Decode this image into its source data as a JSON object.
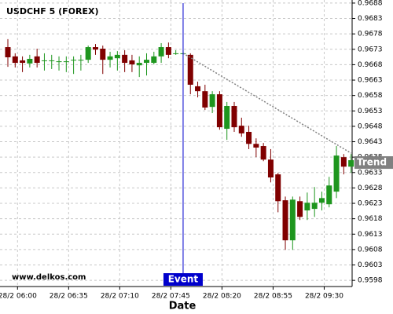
{
  "chart_data": {
    "type": "candlestick",
    "title": "USDCHF 5 (FOREX)",
    "watermark": "www.delkos.com",
    "xlabel": "Date",
    "categories": [
      null,
      "28/2 06:00",
      null,
      null,
      null,
      null,
      null,
      null,
      "28/2 06:35",
      null,
      null,
      null,
      null,
      null,
      null,
      "28/2 07:10",
      null,
      null,
      null,
      null,
      null,
      null,
      "28/2 07:45",
      null,
      null,
      null,
      null,
      null,
      null,
      "28/2 08:20",
      null,
      null,
      null,
      null,
      null,
      null,
      "28/2 08:55",
      null,
      null,
      null,
      null,
      null,
      null,
      "28/2 09:30",
      null,
      null,
      null,
      null
    ],
    "open": [
      0.96737,
      0.96707,
      0.96694,
      0.96684,
      0.96707,
      0.96694,
      0.96694,
      0.96691,
      0.96691,
      0.96696,
      0.96696,
      0.96696,
      0.96737,
      0.96732,
      0.96696,
      0.96701,
      0.96712,
      0.96694,
      0.96678,
      0.96686,
      0.96686,
      0.96707,
      0.96737,
      0.96717,
      0.96717,
      0.96712,
      0.9661,
      0.96594,
      0.96543,
      0.96584,
      0.96472,
      0.96546,
      0.96482,
      0.96462,
      0.96423,
      0.96416,
      0.96372,
      0.96324,
      0.9624,
      0.9611,
      0.96237,
      0.96207,
      0.96212,
      0.96232,
      0.96227,
      0.96268,
      0.9638,
      0.96349
    ],
    "high": [
      0.96763,
      0.96717,
      0.96707,
      0.96712,
      0.96732,
      0.96717,
      0.96712,
      0.96707,
      0.96707,
      0.96707,
      0.96712,
      0.96742,
      0.96747,
      0.96742,
      0.96722,
      0.96724,
      0.96727,
      0.96712,
      0.96707,
      0.96717,
      0.96722,
      0.9675,
      0.96752,
      0.96727,
      0.96727,
      0.96717,
      0.96625,
      0.96615,
      0.96594,
      0.96594,
      0.96559,
      0.96559,
      0.96508,
      0.96482,
      0.96441,
      0.96426,
      0.96406,
      0.96329,
      0.96252,
      0.96252,
      0.96252,
      0.96265,
      0.96283,
      0.96268,
      0.96316,
      0.96416,
      0.9639,
      0.9639
    ],
    "low": [
      0.96673,
      0.96671,
      0.96656,
      0.96671,
      0.96671,
      0.96661,
      0.96666,
      0.96661,
      0.96656,
      0.9665,
      0.96661,
      0.96686,
      0.96712,
      0.9665,
      0.96671,
      0.96661,
      0.96656,
      0.96656,
      0.9664,
      0.96645,
      0.96681,
      0.96686,
      0.96701,
      0.96712,
      0.96712,
      0.96584,
      0.96574,
      0.96533,
      0.96523,
      0.96469,
      0.96436,
      0.96462,
      0.96446,
      0.96406,
      0.9638,
      0.96367,
      0.96298,
      0.96201,
      0.96079,
      0.96079,
      0.96176,
      0.96176,
      0.96186,
      0.96207,
      0.96217,
      0.96247,
      0.96324,
      0.96329
    ],
    "close": [
      0.96704,
      0.96686,
      0.96686,
      0.96699,
      0.96686,
      0.96694,
      0.96694,
      0.96691,
      0.96691,
      0.96696,
      0.96696,
      0.96737,
      0.96729,
      0.96696,
      0.96707,
      0.96712,
      0.96686,
      0.96681,
      0.96686,
      0.96696,
      0.96707,
      0.96737,
      0.96712,
      0.96717,
      0.96717,
      0.96615,
      0.96594,
      0.96541,
      0.96584,
      0.96477,
      0.96546,
      0.96477,
      0.96457,
      0.96423,
      0.96411,
      0.96372,
      0.96314,
      0.96237,
      0.9611,
      0.96242,
      0.96186,
      0.96232,
      0.96232,
      0.96247,
      0.96288,
      0.96385,
      0.96349,
      0.9637
    ],
    "colors": {
      "up": "#1e961e",
      "down": "#800000"
    },
    "ylim": [
      0.9596,
      0.9689
    ],
    "yticks": [
      0.9688,
      0.9683,
      0.9678,
      0.9673,
      0.9668,
      0.9663,
      0.9658,
      0.9653,
      0.9648,
      0.9643,
      0.9638,
      0.9633,
      0.9628,
      0.9623,
      0.9618,
      0.9613,
      0.9608,
      0.9603,
      0.9598
    ],
    "grid": true,
    "event": {
      "index": 24,
      "label": "Event",
      "color": "#0000cc"
    },
    "trend": {
      "label": "Trend",
      "start": [
        24,
        0.96717
      ],
      "end": [
        47,
        0.96393
      ],
      "color": "#808080"
    }
  }
}
